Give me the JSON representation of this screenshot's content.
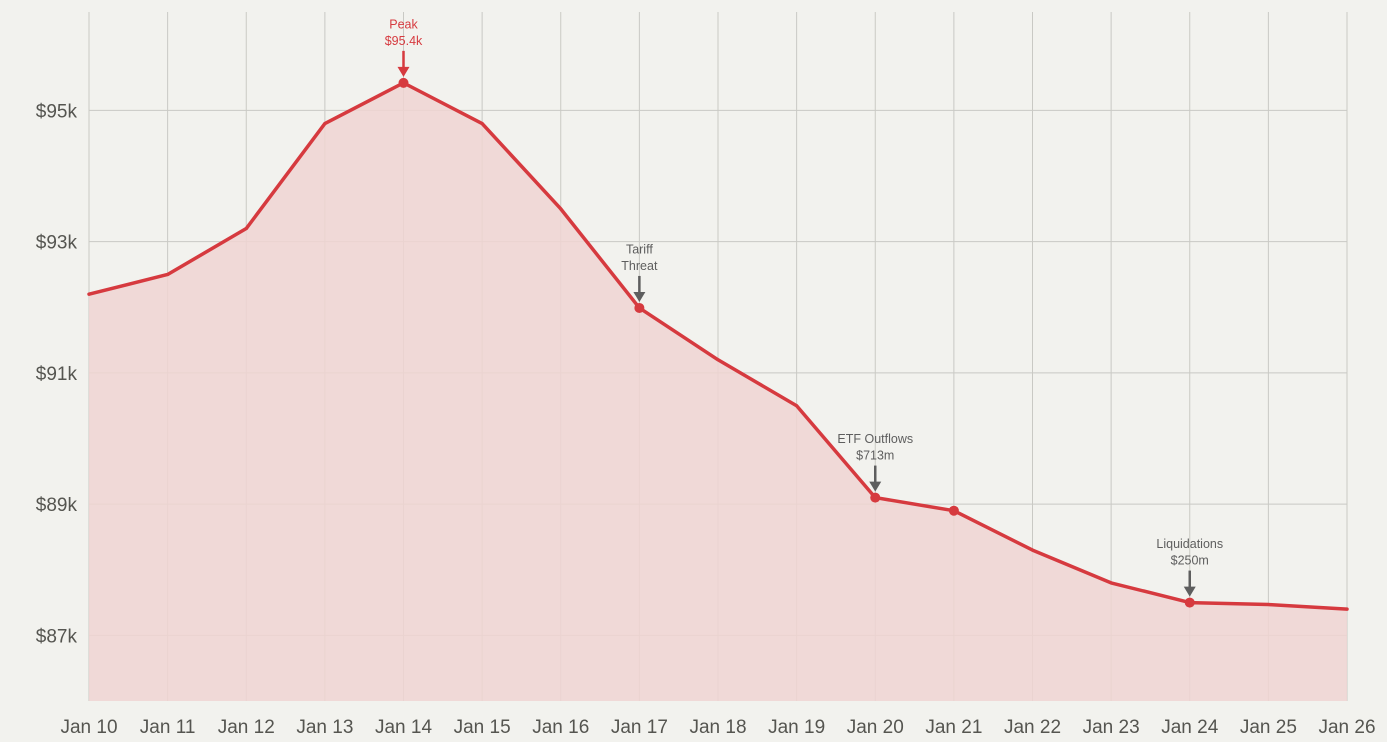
{
  "chart_data": {
    "type": "area",
    "categories": [
      "Jan 10",
      "Jan 11",
      "Jan 12",
      "Jan 13",
      "Jan 14",
      "Jan 15",
      "Jan 16",
      "Jan 17",
      "Jan 18",
      "Jan 19",
      "Jan 20",
      "Jan 21",
      "Jan 22",
      "Jan 23",
      "Jan 24",
      "Jan 25",
      "Jan 26"
    ],
    "series": [
      {
        "values": [
          92200,
          92500,
          93200,
          94800,
          95420,
          94800,
          93500,
          91990,
          91200,
          90500,
          89100,
          88900,
          88300,
          87800,
          87500,
          87470,
          87400
        ]
      }
    ],
    "markers": [
      "Jan 14",
      "Jan 17",
      "Jan 20",
      "Jan 21",
      "Jan 24"
    ],
    "ylim": [
      86000,
      96500
    ],
    "yticks": [
      87000,
      89000,
      91000,
      93000,
      95000
    ],
    "ytick_labels": [
      "$87k",
      "$89k",
      "$91k",
      "$93k",
      "$95k"
    ],
    "grid": true,
    "colors": {
      "line": "#d63a3f",
      "fill": "#f0d5d2",
      "grid": "#c9c9c4",
      "annotation": "#5e5e5e",
      "tick_text": "#555550",
      "background": "#f2f2ee"
    },
    "annotations": [
      {
        "category": "Jan 14",
        "lines": [
          "Peak",
          "$95.4k"
        ],
        "color": "#d63a3f"
      },
      {
        "category": "Jan 17",
        "lines": [
          "Tariff",
          "Threat"
        ],
        "color": "#5e5e5e"
      },
      {
        "category": "Jan 20",
        "lines": [
          "ETF Outflows",
          "$713m"
        ],
        "color": "#5e5e5e"
      },
      {
        "category": "Jan 24",
        "lines": [
          "Liquidations",
          "$250m"
        ],
        "color": "#5e5e5e"
      }
    ]
  }
}
